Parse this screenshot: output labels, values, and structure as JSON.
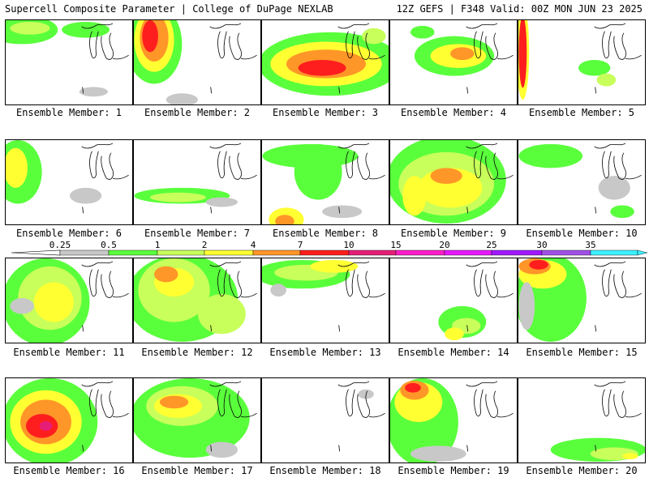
{
  "header": {
    "title": "Supercell Composite Parameter | College of DuPage NEXLAB",
    "run_info": "12Z GEFS | F348 Valid: 00Z MON JUN 23 2025"
  },
  "legend": {
    "labels": [
      "0.25",
      "0.5",
      "1",
      "2",
      "4",
      "7",
      "10",
      "15",
      "20",
      "25",
      "30",
      "35"
    ],
    "colors": [
      "#c8c8c8",
      "#5aff3c",
      "#c8ff5a",
      "#ffff32",
      "#ff9628",
      "#ff1e1e",
      "#e61e78",
      "#ff1ec8",
      "#e619ff",
      "#a019ff",
      "#a050e6",
      "#3cf0ff"
    ]
  },
  "panels": [
    {
      "caption": "Ensemble Member: 1"
    },
    {
      "caption": "Ensemble Member: 2"
    },
    {
      "caption": "Ensemble Member: 3"
    },
    {
      "caption": "Ensemble Member: 4"
    },
    {
      "caption": "Ensemble Member: 5"
    },
    {
      "caption": "Ensemble Member: 6"
    },
    {
      "caption": "Ensemble Member: 7"
    },
    {
      "caption": "Ensemble Member: 8"
    },
    {
      "caption": "Ensemble Member: 9"
    },
    {
      "caption": "Ensemble Member: 10"
    },
    {
      "caption": "Ensemble Member: 11"
    },
    {
      "caption": "Ensemble Member: 12"
    },
    {
      "caption": "Ensemble Member: 13"
    },
    {
      "caption": "Ensemble Member: 14"
    },
    {
      "caption": "Ensemble Member: 15"
    },
    {
      "caption": "Ensemble Member: 16"
    },
    {
      "caption": "Ensemble Member: 17"
    },
    {
      "caption": "Ensemble Member: 18"
    },
    {
      "caption": "Ensemble Member: 19"
    },
    {
      "caption": "Ensemble Member: 20"
    }
  ]
}
